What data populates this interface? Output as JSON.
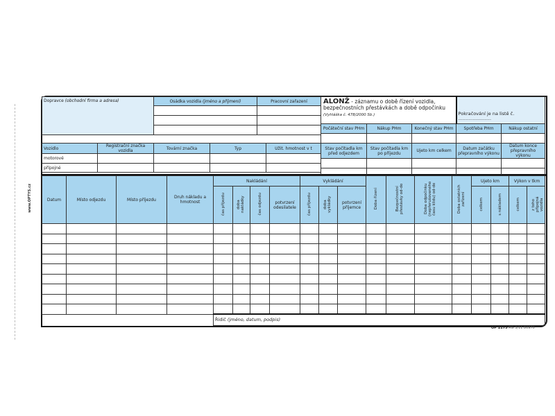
{
  "header": {
    "carrier_label": "Dopravce",
    "carrier_hint": "(obchodní firma a adresa)",
    "crew_label": "Osádka vozidla",
    "crew_hint": "(jméno a příjmení)",
    "position_label": "Pracovní zařazení",
    "title_bold": "ALONŽ",
    "title_rest": " - záznamu o době řízení vozidla, bezpečnostních přestávkách a době odpočinku",
    "decree": "(Vyhláška č. 478/2000 Sb.)",
    "continuation": "Pokračování je na listě č. ......................."
  },
  "fuel_headers": [
    "Počáteční stav PHm",
    "Nákup PHm",
    "Konečný stav PHm",
    "Spotřeba PHm",
    "Nákup ostatní"
  ],
  "km_headers": [
    "Stav počítadla km před odjezdem",
    "Stav počítadla km po příjezdu",
    "Ujeto km celkem",
    "Datum začátku přepravního výkonu",
    "Datum konce přepravního výkonu"
  ],
  "vehicle": {
    "headers": [
      "Vozidlo",
      "Registrační značka vozidla",
      "Tovární značka",
      "Typ",
      "Užit. hmotnost v t"
    ],
    "rows": [
      "motorové",
      "přípojné"
    ]
  },
  "log": {
    "date": "Datum",
    "departure": "Místo odjezdu",
    "arrival": "Místo příjezdu",
    "cargo": "Druh nákladu a hmotnost",
    "loading": "Nakládání",
    "loading_cols": [
      "čas příjezdu",
      "doba nakládky",
      "čas odjezdu",
      "potvrzení odesilatele"
    ],
    "unloading": "Vykládání",
    "unloading_cols": [
      "čas příjezdu",
      "doba vykládky",
      "potvrzení příjemce"
    ],
    "driving_time": "Doba řízení",
    "breaks": "Bezpečnostní přestávky od-do",
    "rest": "Doba odpočinku (nepřerušovaného času klidu) od-do",
    "other_work": "Doba ostatních zařízení",
    "km": "Ujeto km",
    "km_cols": [
      "celkem",
      "s nákladem"
    ],
    "output": "Výkon v tkm",
    "output_cols": [
      "celkem",
      "z toho přípojná vozidla"
    ],
    "driver_label": "Řidič",
    "driver_hint": "(jméno, datum, podpis)"
  },
  "footer": {
    "code": "OP 1175",
    "rest": "RG 3/11 80970"
  },
  "side": {
    "web": "www.OPTYS.cz"
  }
}
